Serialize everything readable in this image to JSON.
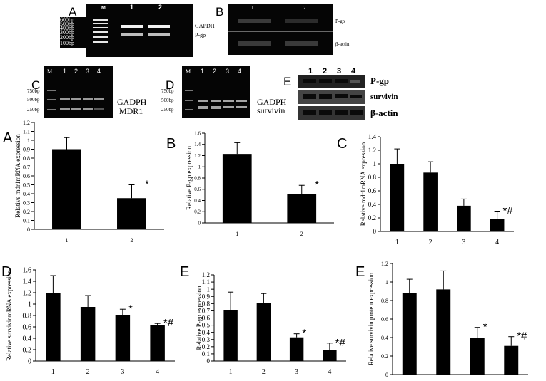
{
  "gels": {
    "A": {
      "letter": "A",
      "lanes": [
        "M",
        "1",
        "2"
      ],
      "markers": [
        "600bp",
        "500bp",
        "400bp",
        "300bp",
        "200bp",
        "100bp"
      ],
      "band_labels": [
        "GAPDH",
        "P-gp"
      ]
    },
    "B": {
      "letter": "B",
      "lanes": [
        "1",
        "2"
      ],
      "band_labels": [
        "P-gp",
        "β-actin"
      ]
    },
    "C": {
      "letter": "C",
      "lanes": [
        "M",
        "1",
        "2",
        "3",
        "4"
      ],
      "markers": [
        "750bp",
        "500bp",
        "250bp"
      ],
      "band_labels": [
        "GADPH",
        "MDR1"
      ]
    },
    "D": {
      "letter": "D",
      "lanes": [
        "M",
        "1",
        "2",
        "3",
        "4"
      ],
      "markers": [
        "750bp",
        "500bp",
        "250bp"
      ],
      "band_labels": [
        "GADPH",
        "survivin"
      ]
    },
    "E": {
      "letter": "E",
      "lanes": [
        "1",
        "2",
        "3",
        "4"
      ],
      "band_labels": [
        "P-gp",
        "survivin",
        "β-actin"
      ]
    }
  },
  "colors": {
    "bar": "#000000",
    "gel": "#050505",
    "band": "#d8d8d8"
  },
  "chart_data": [
    {
      "panel": "A",
      "type": "bar",
      "title": "",
      "ylabel": "Relative mdr1mRNA expression",
      "categories": [
        "1",
        "2"
      ],
      "values": [
        0.9,
        0.35
      ],
      "errors": [
        0.13,
        0.15
      ],
      "annotations": [
        "",
        "*"
      ],
      "ylim": [
        0,
        1.2
      ],
      "yticks": [
        0,
        0.1,
        0.2,
        0.3,
        0.4,
        0.5,
        0.6,
        0.7,
        0.8,
        0.9,
        1,
        1.1,
        1.2
      ],
      "ytick_labels": [
        "0",
        "0.1",
        "0.2",
        "0.3",
        "0.4",
        "0.5",
        "0.6",
        "0.7",
        "0.8",
        "0.9",
        "1",
        "1.1",
        "1.2"
      ],
      "grid": false
    },
    {
      "panel": "B",
      "type": "bar",
      "title": "",
      "ylabel": "Relative P-gp expression",
      "categories": [
        "1",
        "2"
      ],
      "values": [
        1.23,
        0.52
      ],
      "errors": [
        0.2,
        0.15
      ],
      "annotations": [
        "",
        "*"
      ],
      "ylim": [
        0,
        1.6
      ],
      "yticks": [
        0,
        0.2,
        0.4,
        0.6,
        0.8,
        1,
        1.2,
        1.4,
        1.6
      ],
      "ytick_labels": [
        "0",
        "0.2",
        "0.4",
        "0.6",
        "0.8",
        "1",
        "1.2",
        "1.4",
        "1.6"
      ],
      "grid": false
    },
    {
      "panel": "C",
      "type": "bar",
      "title": "",
      "ylabel": "Relative mdr1mRNA expression",
      "categories": [
        "1",
        "2",
        "3",
        "4"
      ],
      "values": [
        1.0,
        0.87,
        0.38,
        0.18
      ],
      "errors": [
        0.22,
        0.16,
        0.1,
        0.12
      ],
      "annotations": [
        "",
        "",
        "",
        "*#"
      ],
      "ylim": [
        0,
        1.4
      ],
      "yticks": [
        0,
        0.2,
        0.4,
        0.6,
        0.8,
        1,
        1.2,
        1.4
      ],
      "ytick_labels": [
        "0",
        "0.2",
        "0.4",
        "0.6",
        "0.8",
        "1",
        "1.2",
        "1.4"
      ],
      "grid": false
    },
    {
      "panel": "D",
      "type": "bar",
      "title": "",
      "ylabel": "Relative survivinmRNA expression",
      "categories": [
        "1",
        "2",
        "3",
        "4"
      ],
      "values": [
        1.2,
        0.95,
        0.8,
        0.63
      ],
      "errors": [
        0.3,
        0.2,
        0.11,
        0.03
      ],
      "annotations": [
        "",
        "",
        "*",
        "*#"
      ],
      "ylim": [
        0,
        1.6
      ],
      "yticks": [
        0,
        0.2,
        0.4,
        0.6,
        0.8,
        1,
        1.2,
        1.4,
        1.6
      ],
      "ytick_labels": [
        "0",
        "0.2",
        "0.4",
        "0.6",
        "0.8",
        "1",
        "1.2",
        "1.4",
        "1.6"
      ],
      "grid": false
    },
    {
      "panel": "E",
      "type": "bar",
      "title": "",
      "ylabel": "Relative P-gp expression",
      "categories": [
        "1",
        "2",
        "3",
        "4"
      ],
      "values": [
        0.71,
        0.81,
        0.33,
        0.15
      ],
      "errors": [
        0.25,
        0.13,
        0.05,
        0.1
      ],
      "annotations": [
        "",
        "",
        "*",
        "*#"
      ],
      "ylim": [
        0,
        1.2
      ],
      "yticks": [
        0,
        0.1,
        0.2,
        0.3,
        0.4,
        0.5,
        0.6,
        0.7,
        0.8,
        0.9,
        1,
        1.1,
        1.2
      ],
      "ytick_labels": [
        "0",
        "0.1",
        "0.2",
        "0.3",
        "0.4",
        "0.5",
        "0.6",
        "0.7",
        "0.8",
        "0.9",
        "1",
        "1.1",
        "1.2"
      ],
      "grid": false
    },
    {
      "panel": "E",
      "type": "bar",
      "title": "",
      "ylabel": "Relative survivin protein expression",
      "categories": [
        "1",
        "2",
        "3",
        "4"
      ],
      "values": [
        0.88,
        0.92,
        0.4,
        0.31
      ],
      "errors": [
        0.15,
        0.2,
        0.11,
        0.1
      ],
      "annotations": [
        "",
        "",
        "*",
        "*#"
      ],
      "ylim": [
        0,
        1.2
      ],
      "yticks": [
        0,
        0.2,
        0.4,
        0.6,
        0.8,
        1,
        1.2
      ],
      "ytick_labels": [
        "0",
        "0.2",
        "0.4",
        "0.6",
        "0.8",
        "1",
        "1.2"
      ],
      "grid": false
    }
  ]
}
